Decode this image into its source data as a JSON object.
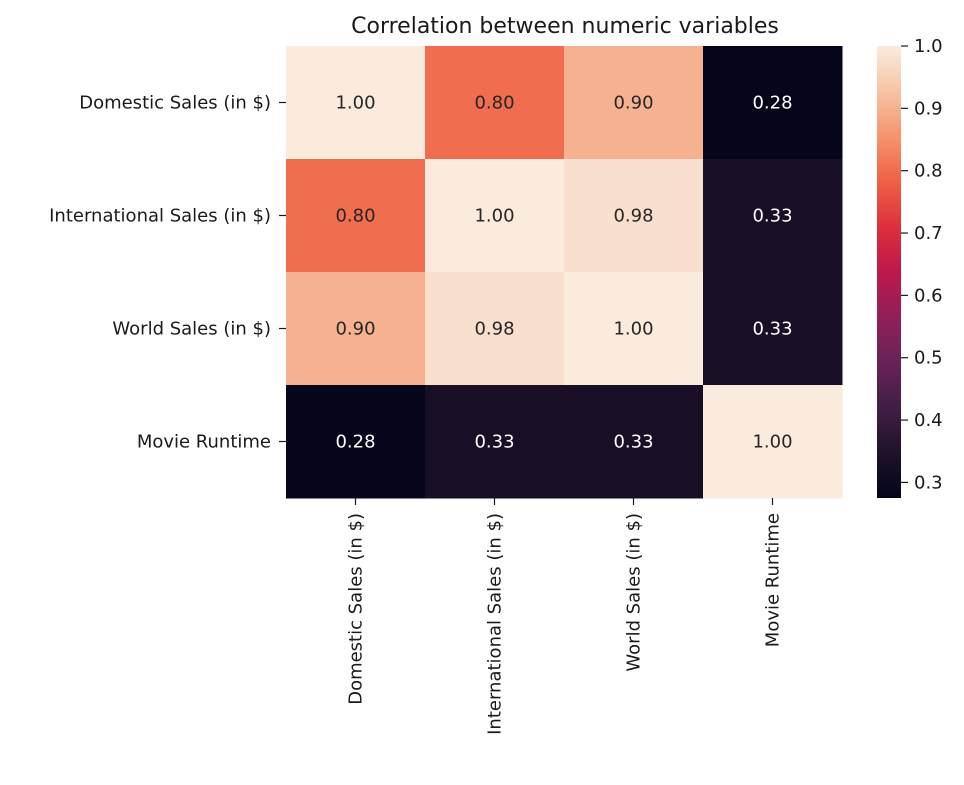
{
  "chart_data": {
    "type": "heatmap",
    "title": "Correlation between numeric variables",
    "xlabel": "",
    "ylabel": "",
    "row_labels": [
      "Domestic Sales (in $)",
      "International Sales (in $)",
      "World Sales (in $)",
      "Movie Runtime"
    ],
    "col_labels": [
      "Domestic Sales (in $)",
      "International Sales (in $)",
      "World Sales (in $)",
      "Movie Runtime"
    ],
    "values": [
      [
        1.0,
        0.8,
        0.9,
        0.28
      ],
      [
        0.8,
        1.0,
        0.98,
        0.33
      ],
      [
        0.9,
        0.98,
        1.0,
        0.33
      ],
      [
        0.28,
        0.33,
        0.33,
        1.0
      ]
    ],
    "cell_labels": [
      [
        "1.00",
        "0.80",
        "0.90",
        "0.28"
      ],
      [
        "0.80",
        "1.00",
        "0.98",
        "0.33"
      ],
      [
        "0.90",
        "0.98",
        "1.00",
        "0.33"
      ],
      [
        "0.28",
        "0.33",
        "0.33",
        "1.00"
      ]
    ],
    "colormap": "rocket",
    "colorbar": {
      "range": [
        0.275,
        1.0
      ],
      "ticks": [
        0.3,
        0.4,
        0.5,
        0.6,
        0.7,
        0.8,
        0.9,
        1.0
      ],
      "tick_labels": [
        "0.3",
        "0.4",
        "0.5",
        "0.6",
        "0.7",
        "0.8",
        "0.9",
        "1.0"
      ]
    },
    "grid": false,
    "legend": "colorbar-right"
  }
}
